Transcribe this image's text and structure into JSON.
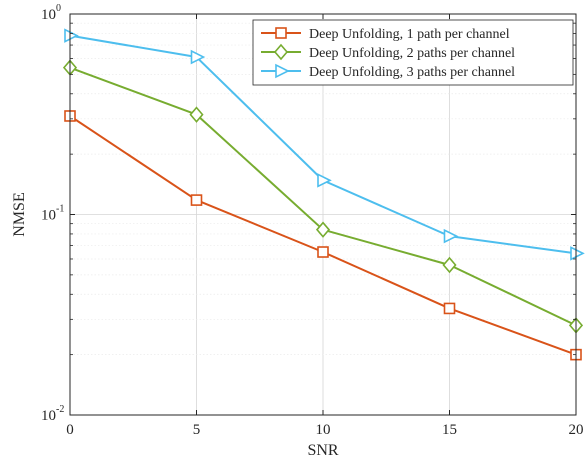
{
  "chart_data": {
    "type": "line",
    "x": [
      0,
      5,
      10,
      15,
      20
    ],
    "xlabel": "SNR",
    "ylabel": "NMSE",
    "xlim": [
      0,
      20
    ],
    "ylim": [
      0.01,
      1
    ],
    "yscale": "log",
    "grid": true,
    "legend_position": "top-right",
    "x_ticks": [
      "0",
      "5",
      "10",
      "15",
      "20"
    ],
    "y_ticks": [
      {
        "base": "10",
        "exp": "0",
        "value": 1
      },
      {
        "base": "10",
        "exp": "-1",
        "value": 0.1
      },
      {
        "base": "10",
        "exp": "-2",
        "value": 0.01
      }
    ],
    "series": [
      {
        "name": "Deep Unfolding, 1 path per channel",
        "color": "#D95319",
        "marker": "square",
        "values": [
          0.31,
          0.118,
          0.065,
          0.034,
          0.02
        ]
      },
      {
        "name": "Deep Unfolding, 2 paths per channel",
        "color": "#77AC30",
        "marker": "diamond",
        "values": [
          0.54,
          0.315,
          0.084,
          0.056,
          0.028
        ]
      },
      {
        "name": "Deep Unfolding, 3 paths per channel",
        "color": "#4DBEEE",
        "marker": "triangle-right",
        "values": [
          0.78,
          0.61,
          0.148,
          0.078,
          0.064
        ]
      }
    ]
  }
}
